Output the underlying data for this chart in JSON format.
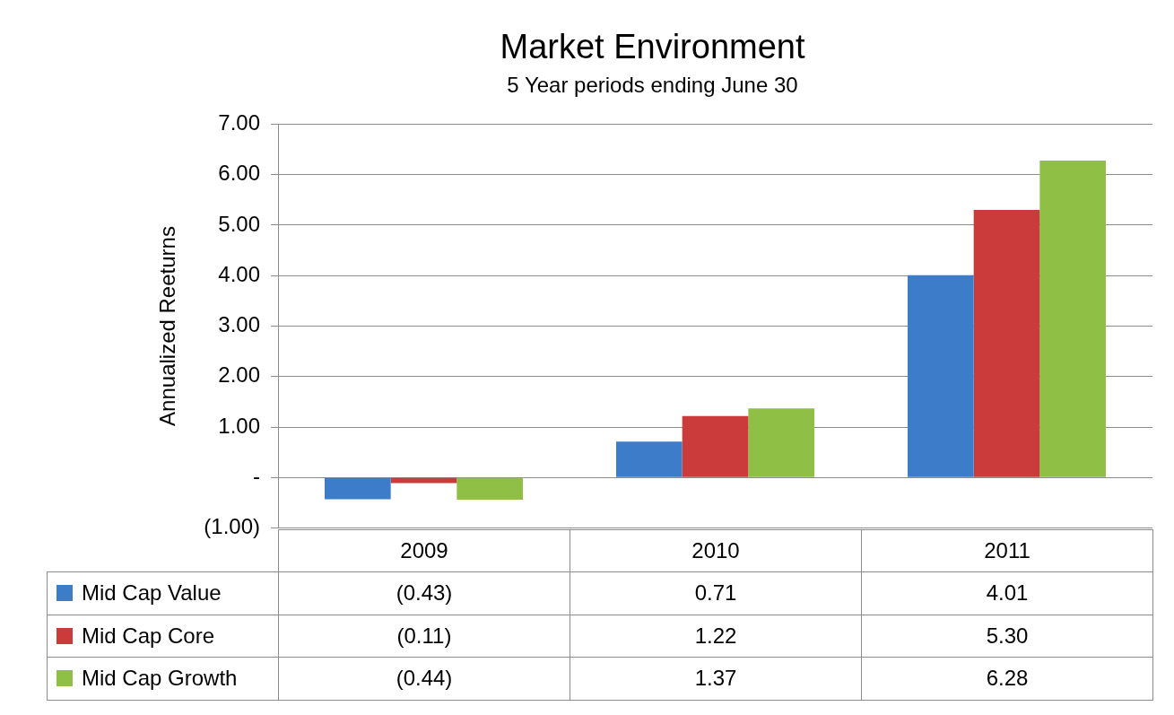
{
  "chart_data": {
    "type": "bar",
    "title": "Market Environment",
    "subtitle": "5 Year periods ending June 30",
    "ylabel": "Annualized Reeturns",
    "categories": [
      "2009",
      "2010",
      "2011"
    ],
    "series": [
      {
        "name": "Mid Cap Value",
        "color": "#3d7cc9",
        "values": [
          -0.43,
          0.71,
          4.01
        ],
        "value_labels": [
          "(0.43)",
          "0.71",
          "4.01"
        ]
      },
      {
        "name": "Mid Cap Core",
        "color": "#cc3b3b",
        "values": [
          -0.11,
          1.22,
          5.3
        ],
        "value_labels": [
          "(0.11)",
          "1.22",
          "5.30"
        ]
      },
      {
        "name": "Mid Cap Growth",
        "color": "#8fc045",
        "values": [
          -0.44,
          1.37,
          6.28
        ],
        "value_labels": [
          "(0.44)",
          "1.37",
          "6.28"
        ]
      }
    ],
    "ylim": [
      -1,
      7
    ],
    "yticks": [
      {
        "value": -1,
        "label": "(1.00)"
      },
      {
        "value": 0,
        "label": "-"
      },
      {
        "value": 1,
        "label": "1.00"
      },
      {
        "value": 2,
        "label": "2.00"
      },
      {
        "value": 3,
        "label": "3.00"
      },
      {
        "value": 4,
        "label": "4.00"
      },
      {
        "value": 5,
        "label": "5.00"
      },
      {
        "value": 6,
        "label": "6.00"
      },
      {
        "value": 7,
        "label": "7.00"
      }
    ],
    "grid": "y",
    "legend": "bottom"
  }
}
